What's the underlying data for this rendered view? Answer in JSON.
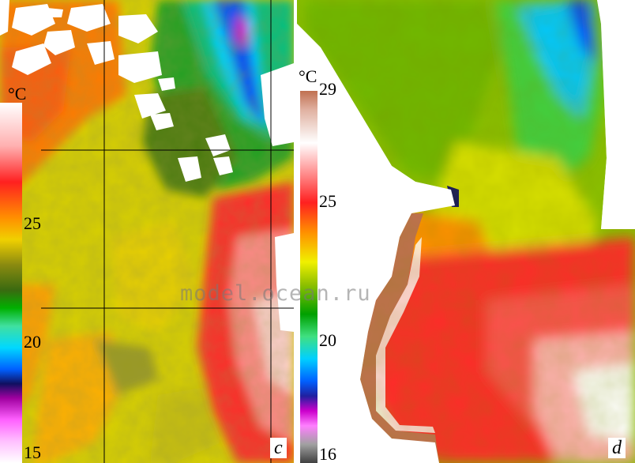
{
  "panel_c": {
    "letter": "c",
    "colorbar": {
      "unit": "°C",
      "ticks": [
        "25",
        "20",
        "15"
      ]
    }
  },
  "panel_d": {
    "letter": "d",
    "colorbar": {
      "unit": "°C",
      "ticks": [
        "29",
        "25",
        "20",
        "16"
      ]
    }
  },
  "watermark": "model.ocean.ru",
  "colors": {
    "land": "#ffffff",
    "cloud": "#ffffff",
    "grid": "#000000",
    "temperature_ramp": [
      "#707070",
      "#cc66cc",
      "#cc00cc",
      "#1a1a8c",
      "#0050ff",
      "#00c8ff",
      "#00c864",
      "#00a000",
      "#5a7a10",
      "#c8c800",
      "#ffd000",
      "#ff8000",
      "#ff2020",
      "#ff8080",
      "#ffffff",
      "#c88060"
    ]
  }
}
